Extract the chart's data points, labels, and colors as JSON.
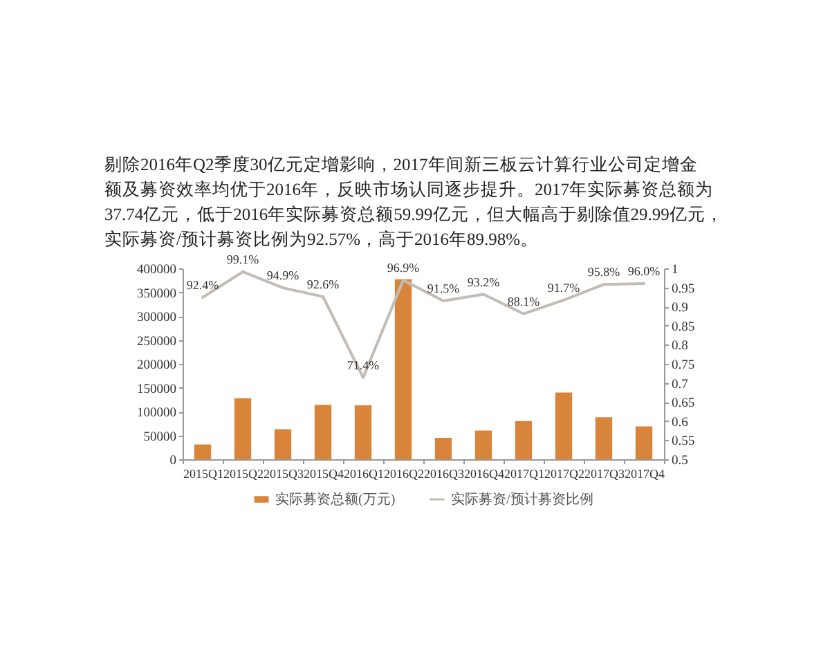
{
  "chart_data": {
    "type": "bar",
    "title": "剔除2016年Q2季度30亿元定增影响，2017年间新三板云计算行业公司定增金额及募资效率均优于2016年，反映市场认同逐步提升。2017年实际募资总额为37.74亿元，低于2016年实际募资总额59.99亿元，但大幅高于剔除值29.99亿元，实际募资/预计募资比例为92.57%，高于2016年89.98%。",
    "categories": [
      "2015Q1",
      "2015Q2",
      "2015Q3",
      "2015Q4",
      "2016Q1",
      "2016Q2",
      "2016Q3",
      "2016Q4",
      "2017Q1",
      "2017Q2",
      "2017Q3",
      "2017Q4"
    ],
    "series": [
      {
        "name": "实际募资总额(万元)",
        "color": "#d8853b",
        "values": [
          31000,
          128000,
          63000,
          114000,
          113000,
          377000,
          45000,
          60000,
          80000,
          140000,
          88000,
          69000
        ]
      },
      {
        "name": "实际募资/预计募资比例",
        "type": "line",
        "axis": "y2",
        "color": "#c3bcb5",
        "values": [
          0.924,
          0.991,
          0.949,
          0.926,
          0.714,
          0.969,
          0.915,
          0.932,
          0.881,
          0.917,
          0.958,
          0.96
        ],
        "value_labels": [
          "92.4%",
          "99.1%",
          "94.9%",
          "92.6%",
          "71.4%",
          "96.9%",
          "91.5%",
          "93.2%",
          "88.1%",
          "91.7%",
          "95.8%",
          "96.0%"
        ]
      }
    ],
    "ylim": [
      0,
      400000
    ],
    "yticks": [
      0,
      50000,
      100000,
      150000,
      200000,
      250000,
      300000,
      350000,
      400000
    ],
    "y2lim": [
      0.5,
      1
    ],
    "y2ticks": [
      0.5,
      0.55,
      0.6,
      0.65,
      0.7,
      0.75,
      0.8,
      0.85,
      0.9,
      0.95,
      1
    ],
    "legend": "bottom",
    "grid": false
  }
}
